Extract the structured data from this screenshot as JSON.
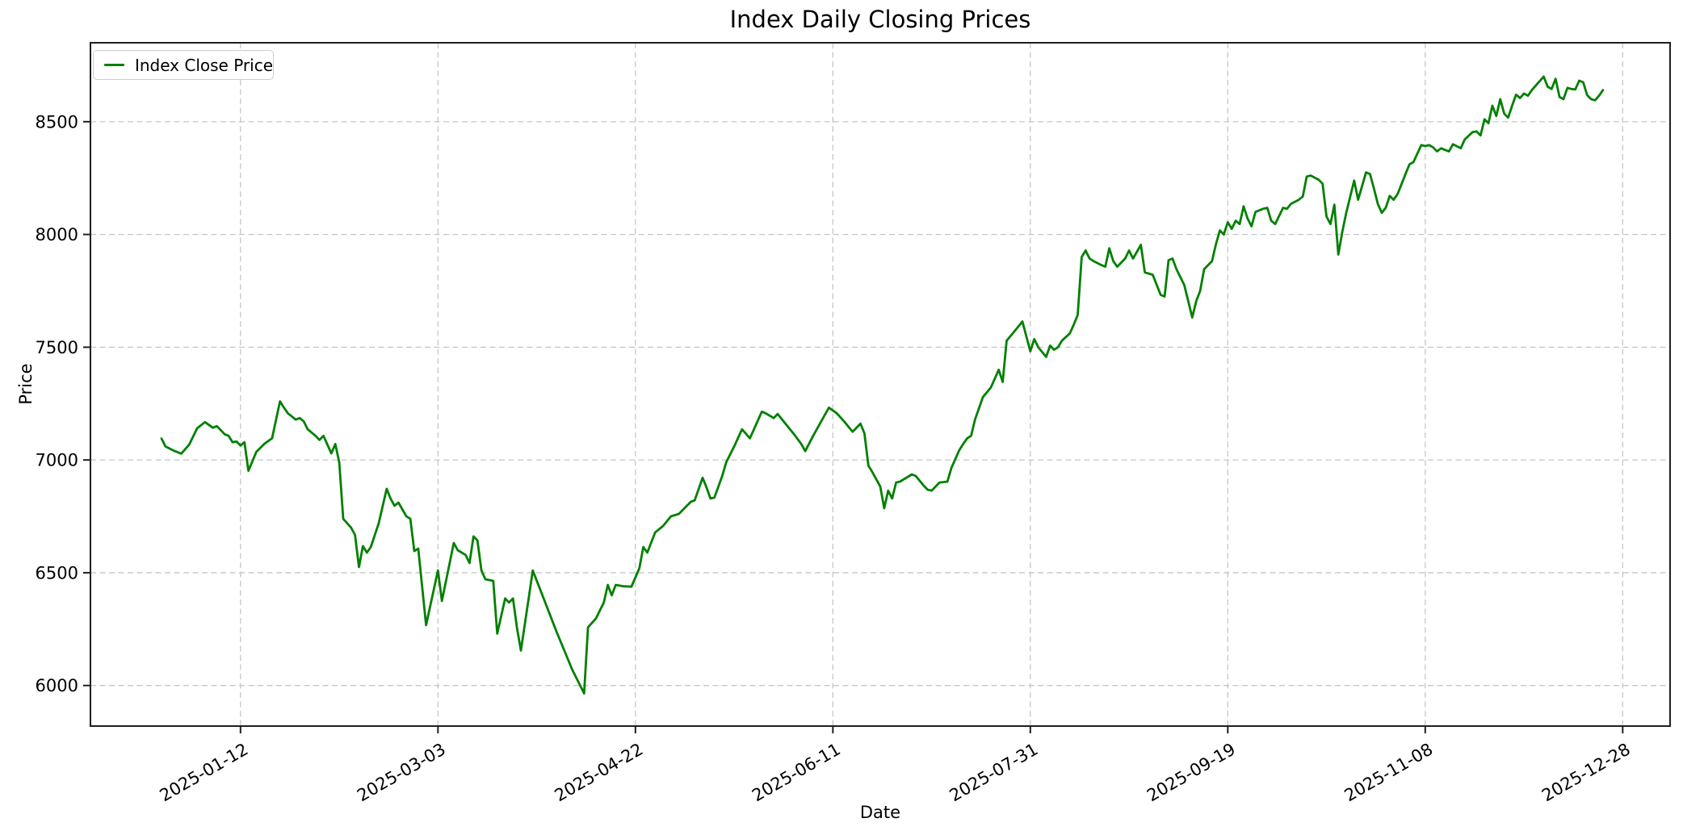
{
  "chart": {
    "title": "Index Daily Closing Prices",
    "xlabel": "Date",
    "ylabel": "Price",
    "legend": {
      "label": "Index Close Price"
    }
  },
  "colors": {
    "line": "#008000",
    "grid": "#c6c6c6",
    "spine": "#1f1f1f",
    "text": "#000000",
    "background": "#ffffff",
    "legend_border": "#cccccc"
  },
  "chart_data": {
    "type": "line",
    "title": "Index Daily Closing Prices",
    "xlabel": "Date",
    "ylabel": "Price",
    "grid": true,
    "grid_style": "dashed",
    "legend_position": "upper-left",
    "x_tick_labels": [
      "2025-01-12",
      "2025-03-03",
      "2025-04-22",
      "2025-06-11",
      "2025-07-31",
      "2025-09-19",
      "2025-11-08",
      "2025-12-28"
    ],
    "y_ticks": [
      6000,
      6500,
      7000,
      7500,
      8000,
      8500
    ],
    "xlim": [
      "2024-12-05",
      "2026-01-09"
    ],
    "ylim": [
      5820,
      8850
    ],
    "line_color": "#008000",
    "line_width": 2.8,
    "series": [
      {
        "name": "Index Close Price",
        "color": "#008000",
        "dates": [
          "2024-12-23",
          "2024-12-24",
          "2024-12-26",
          "2024-12-28",
          "2024-12-30",
          "2025-01-01",
          "2025-01-03",
          "2025-01-05",
          "2025-01-06",
          "2025-01-08",
          "2025-01-09",
          "2025-01-10",
          "2025-01-11",
          "2025-01-12",
          "2025-01-13",
          "2025-01-14",
          "2025-01-16",
          "2025-01-18",
          "2025-01-20",
          "2025-01-22",
          "2025-01-23",
          "2025-01-24",
          "2025-01-26",
          "2025-01-27",
          "2025-01-28",
          "2025-01-29",
          "2025-01-31",
          "2025-02-01",
          "2025-02-02",
          "2025-02-04",
          "2025-02-05",
          "2025-02-06",
          "2025-02-07",
          "2025-02-09",
          "2025-02-10",
          "2025-02-11",
          "2025-02-12",
          "2025-02-13",
          "2025-02-14",
          "2025-02-16",
          "2025-02-18",
          "2025-02-19",
          "2025-02-20",
          "2025-02-21",
          "2025-02-23",
          "2025-02-24",
          "2025-02-25",
          "2025-02-26",
          "2025-02-28",
          "2025-03-03",
          "2025-03-04",
          "2025-03-07",
          "2025-03-08",
          "2025-03-10",
          "2025-03-11",
          "2025-03-12",
          "2025-03-13",
          "2025-03-14",
          "2025-03-15",
          "2025-03-17",
          "2025-03-18",
          "2025-03-20",
          "2025-03-21",
          "2025-03-22",
          "2025-03-23",
          "2025-03-24",
          "2025-03-26",
          "2025-03-27",
          "2025-03-29",
          "2025-03-31",
          "2025-04-02",
          "2025-04-04",
          "2025-04-06",
          "2025-04-09",
          "2025-04-10",
          "2025-04-12",
          "2025-04-14",
          "2025-04-15",
          "2025-04-16",
          "2025-04-17",
          "2025-04-19",
          "2025-04-21",
          "2025-04-23",
          "2025-04-24",
          "2025-04-25",
          "2025-04-27",
          "2025-04-29",
          "2025-05-01",
          "2025-05-03",
          "2025-05-06",
          "2025-05-07",
          "2025-05-09",
          "2025-05-10",
          "2025-05-11",
          "2025-05-12",
          "2025-05-14",
          "2025-05-15",
          "2025-05-17",
          "2025-05-19",
          "2025-05-21",
          "2025-05-24",
          "2025-05-25",
          "2025-05-27",
          "2025-05-28",
          "2025-06-01",
          "2025-06-03",
          "2025-06-04",
          "2025-06-06",
          "2025-06-08",
          "2025-06-10",
          "2025-06-12",
          "2025-06-14",
          "2025-06-16",
          "2025-06-18",
          "2025-06-19",
          "2025-06-20",
          "2025-06-21",
          "2025-06-23",
          "2025-06-24",
          "2025-06-25",
          "2025-06-26",
          "2025-06-27",
          "2025-06-28",
          "2025-07-01",
          "2025-07-02",
          "2025-07-04",
          "2025-07-05",
          "2025-07-06",
          "2025-07-08",
          "2025-07-10",
          "2025-07-11",
          "2025-07-13",
          "2025-07-14",
          "2025-07-15",
          "2025-07-16",
          "2025-07-17",
          "2025-07-19",
          "2025-07-21",
          "2025-07-23",
          "2025-07-24",
          "2025-07-25",
          "2025-07-27",
          "2025-07-29",
          "2025-07-31",
          "2025-08-01",
          "2025-08-02",
          "2025-08-04",
          "2025-08-05",
          "2025-08-06",
          "2025-08-07",
          "2025-08-08",
          "2025-08-10",
          "2025-08-11",
          "2025-08-12",
          "2025-08-13",
          "2025-08-14",
          "2025-08-15",
          "2025-08-16",
          "2025-08-18",
          "2025-08-19",
          "2025-08-20",
          "2025-08-21",
          "2025-08-22",
          "2025-08-24",
          "2025-08-25",
          "2025-08-26",
          "2025-08-28",
          "2025-08-29",
          "2025-08-31",
          "2025-09-02",
          "2025-09-03",
          "2025-09-04",
          "2025-09-05",
          "2025-09-06",
          "2025-09-07",
          "2025-09-08",
          "2025-09-10",
          "2025-09-11",
          "2025-09-12",
          "2025-09-13",
          "2025-09-15",
          "2025-09-16",
          "2025-09-17",
          "2025-09-18",
          "2025-09-19",
          "2025-09-20",
          "2025-09-21",
          "2025-09-22",
          "2025-09-23",
          "2025-09-24",
          "2025-09-25",
          "2025-09-26",
          "2025-09-28",
          "2025-09-29",
          "2025-09-30",
          "2025-10-01",
          "2025-10-03",
          "2025-10-04",
          "2025-10-05",
          "2025-10-07",
          "2025-10-08",
          "2025-10-09",
          "2025-10-10",
          "2025-10-12",
          "2025-10-13",
          "2025-10-14",
          "2025-10-15",
          "2025-10-16",
          "2025-10-17",
          "2025-10-18",
          "2025-10-19",
          "2025-10-21",
          "2025-10-22",
          "2025-10-24",
          "2025-10-25",
          "2025-10-26",
          "2025-10-27",
          "2025-10-28",
          "2025-10-29",
          "2025-10-30",
          "2025-10-31",
          "2025-11-01",
          "2025-11-03",
          "2025-11-04",
          "2025-11-05",
          "2025-11-07",
          "2025-11-08",
          "2025-11-09",
          "2025-11-10",
          "2025-11-11",
          "2025-11-12",
          "2025-11-13",
          "2025-11-14",
          "2025-11-15",
          "2025-11-17",
          "2025-11-18",
          "2025-11-20",
          "2025-11-21",
          "2025-11-22",
          "2025-11-23",
          "2025-11-24",
          "2025-11-25",
          "2025-11-26",
          "2025-11-27",
          "2025-11-28",
          "2025-11-29",
          "2025-11-30",
          "2025-12-01",
          "2025-12-02",
          "2025-12-03",
          "2025-12-04",
          "2025-12-05",
          "2025-12-06",
          "2025-12-08",
          "2025-12-09",
          "2025-12-10",
          "2025-12-11",
          "2025-12-12",
          "2025-12-13",
          "2025-12-14",
          "2025-12-15",
          "2025-12-16",
          "2025-12-17",
          "2025-12-18",
          "2025-12-19",
          "2025-12-20",
          "2025-12-21",
          "2025-12-22",
          "2025-12-23"
        ],
        "values": [
          7095,
          7060,
          7042,
          7028,
          7068,
          7140,
          7168,
          7143,
          7150,
          7114,
          7107,
          7079,
          7082,
          7064,
          7079,
          6952,
          7036,
          7071,
          7096,
          7260,
          7232,
          7207,
          7179,
          7186,
          7171,
          7136,
          7107,
          7089,
          7107,
          7029,
          7071,
          6989,
          6739,
          6700,
          6668,
          6525,
          6618,
          6589,
          6614,
          6720,
          6872,
          6829,
          6797,
          6811,
          6750,
          6739,
          6596,
          6607,
          6268,
          6510,
          6375,
          6632,
          6600,
          6579,
          6543,
          6661,
          6643,
          6511,
          6471,
          6464,
          6230,
          6386,
          6368,
          6386,
          6257,
          6155,
          6390,
          6510,
          6420,
          6330,
          6240,
          6155,
          6070,
          5965,
          6258,
          6297,
          6368,
          6446,
          6400,
          6446,
          6440,
          6438,
          6520,
          6614,
          6589,
          6679,
          6707,
          6750,
          6761,
          6814,
          6821,
          6921,
          6879,
          6829,
          6833,
          6930,
          6990,
          7060,
          7136,
          7096,
          7214,
          7207,
          7186,
          7204,
          7118,
          7071,
          7039,
          7107,
          7170,
          7232,
          7207,
          7168,
          7125,
          7161,
          7118,
          6975,
          6946,
          6882,
          6786,
          6864,
          6829,
          6900,
          6904,
          6936,
          6929,
          6886,
          6868,
          6864,
          6900,
          6904,
          6964,
          7043,
          7071,
          7096,
          7107,
          7180,
          7279,
          7321,
          7400,
          7346,
          7529,
          7571,
          7614,
          7482,
          7536,
          7500,
          7457,
          7507,
          7489,
          7500,
          7529,
          7561,
          7600,
          7643,
          7900,
          7929,
          7893,
          7882,
          7864,
          7857,
          7939,
          7882,
          7857,
          7893,
          7929,
          7893,
          7954,
          7832,
          7821,
          7732,
          7725,
          7886,
          7893,
          7846,
          7811,
          7775,
          7632,
          7704,
          7750,
          7846,
          7882,
          7957,
          8018,
          8000,
          8054,
          8025,
          8061,
          8046,
          8125,
          8071,
          8036,
          8100,
          8114,
          8118,
          8061,
          8046,
          8118,
          8114,
          8136,
          8154,
          8168,
          8257,
          8261,
          8243,
          8225,
          8079,
          8046,
          8132,
          7911,
          8011,
          8096,
          8239,
          8154,
          8275,
          8268,
          8204,
          8136,
          8096,
          8118,
          8171,
          8154,
          8179,
          8268,
          8311,
          8321,
          8396,
          8392,
          8396,
          8386,
          8368,
          8382,
          8375,
          8368,
          8400,
          8382,
          8421,
          8454,
          8457,
          8439,
          8511,
          8493,
          8571,
          8525,
          8600,
          8536,
          8518,
          8571,
          8620,
          8605,
          8625,
          8615,
          8640,
          8660,
          8700,
          8655,
          8645,
          8690,
          8610,
          8600,
          8650,
          8645,
          8643,
          8682,
          8675,
          8618,
          8600,
          8595,
          8615,
          8640
        ]
      }
    ]
  }
}
